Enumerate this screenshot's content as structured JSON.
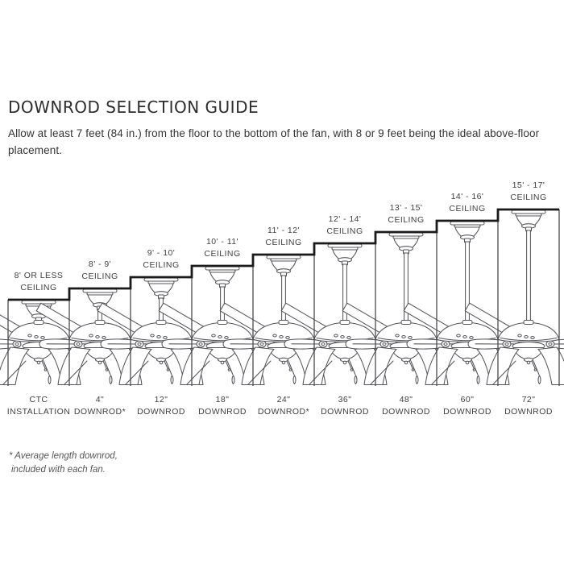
{
  "title": "DOWNROD SELECTION GUIDE",
  "intro": "Allow at least 7 feet (84 in.) from the floor to the bottom of the fan, with 8 or 9 feet being the ideal above-floor placement.",
  "footnote": {
    "line1": "* Average length downrod,",
    "line2": "included with each fan."
  },
  "colors": {
    "line": "#55565a",
    "stair": "#1a1a1a",
    "text": "#414042",
    "background": "#ffffff"
  },
  "columns": [
    {
      "ceiling": "8' OR LESS",
      "ceiling_line2": "CEILING",
      "rod": "CTC",
      "rod_line2": "INSTALLATION"
    },
    {
      "ceiling": "8' - 9'",
      "ceiling_line2": "CEILING",
      "rod": "4\"",
      "rod_line2": "DOWNROD*"
    },
    {
      "ceiling": "9' - 10'",
      "ceiling_line2": "CEILING",
      "rod": "12\"",
      "rod_line2": "DOWNROD"
    },
    {
      "ceiling": "10' - 11'",
      "ceiling_line2": "CEILING",
      "rod": "18\"",
      "rod_line2": "DOWNROD"
    },
    {
      "ceiling": "11' - 12'",
      "ceiling_line2": "CEILING",
      "rod": "24\"",
      "rod_line2": "DOWNROD*"
    },
    {
      "ceiling": "12' - 14'",
      "ceiling_line2": "CEILING",
      "rod": "36\"",
      "rod_line2": "DOWNROD"
    },
    {
      "ceiling": "13' - 15'",
      "ceiling_line2": "CEILING",
      "rod": "48\"",
      "rod_line2": "DOWNROD"
    },
    {
      "ceiling": "14' - 16'",
      "ceiling_line2": "CEILING",
      "rod": "60\"",
      "rod_line2": "DOWNROD"
    },
    {
      "ceiling": "15' - 17'",
      "ceiling_line2": "CEILING",
      "rod": "72\"",
      "rod_line2": "DOWNROD"
    }
  ]
}
